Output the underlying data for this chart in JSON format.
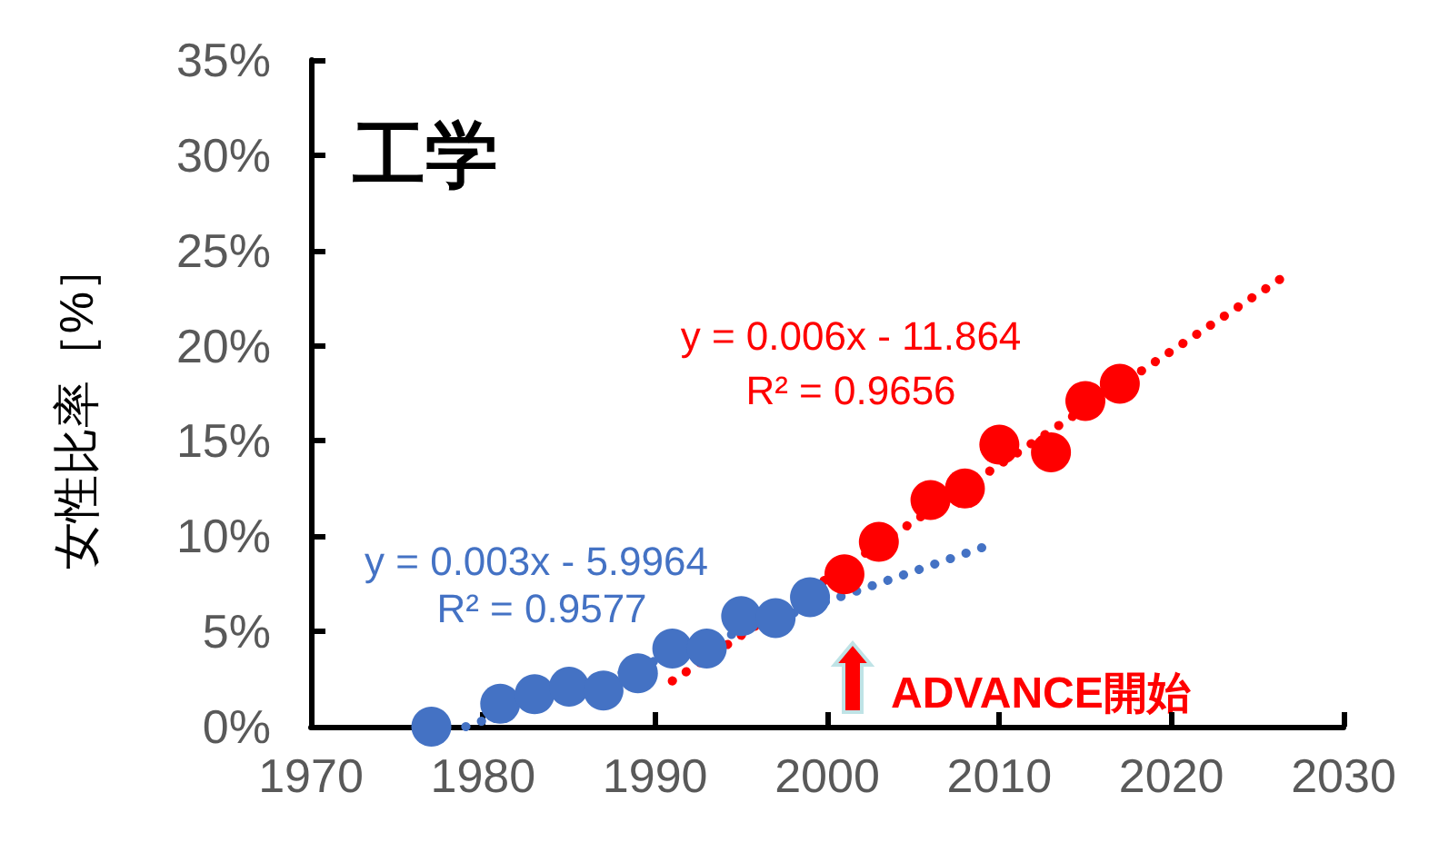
{
  "chart_data": {
    "type": "scatter",
    "title": "工学",
    "ylabel": "女性比率［%］",
    "xlim": [
      1970,
      2030
    ],
    "xticks": [
      1970,
      1980,
      1990,
      2000,
      2010,
      2020,
      2030
    ],
    "ylim": [
      0,
      35
    ],
    "yticks": [
      {
        "value": 0,
        "label": "0%"
      },
      {
        "value": 5,
        "label": "5%"
      },
      {
        "value": 10,
        "label": "10%"
      },
      {
        "value": 15,
        "label": "15%"
      },
      {
        "value": 20,
        "label": "20%"
      },
      {
        "value": 25,
        "label": "25%"
      },
      {
        "value": 30,
        "label": "30%"
      },
      {
        "value": 35,
        "label": "35%"
      }
    ],
    "grid": false,
    "marker": "circle",
    "series": [
      {
        "color": "#4472c4",
        "x": [
          1977,
          1981,
          1983,
          1985,
          1987,
          1989,
          1991,
          1993,
          1995,
          1997,
          1999
        ],
        "values": [
          0,
          1.2,
          1.7,
          2.1,
          1.9,
          2.8,
          4.1,
          4.1,
          5.8,
          5.7,
          6.8
        ]
      },
      {
        "color": "#ff0000",
        "x": [
          2001,
          2003,
          2006,
          2008,
          2010,
          2013,
          2015,
          2017
        ],
        "values": [
          8.0,
          9.7,
          11.9,
          12.5,
          14.8,
          14.4,
          17.1,
          18.0
        ]
      },
      {
        "type": "line",
        "marker": "none",
        "line_style": "dotted",
        "color": "#4472c4",
        "x": [
          1979,
          2009
        ],
        "values": [
          0,
          9.4
        ]
      },
      {
        "type": "line",
        "marker": "none",
        "line_style": "dotted",
        "color": "#ff0000",
        "x": [
          1991,
          2027
        ],
        "values": [
          2.4,
          23.9
        ]
      }
    ],
    "annotations": [
      "y = 0.003x - 5.9964",
      "R² = 0.9577",
      "y = 0.006x - 11.864",
      "R² = 0.9656",
      "ADVANCE開始"
    ]
  }
}
